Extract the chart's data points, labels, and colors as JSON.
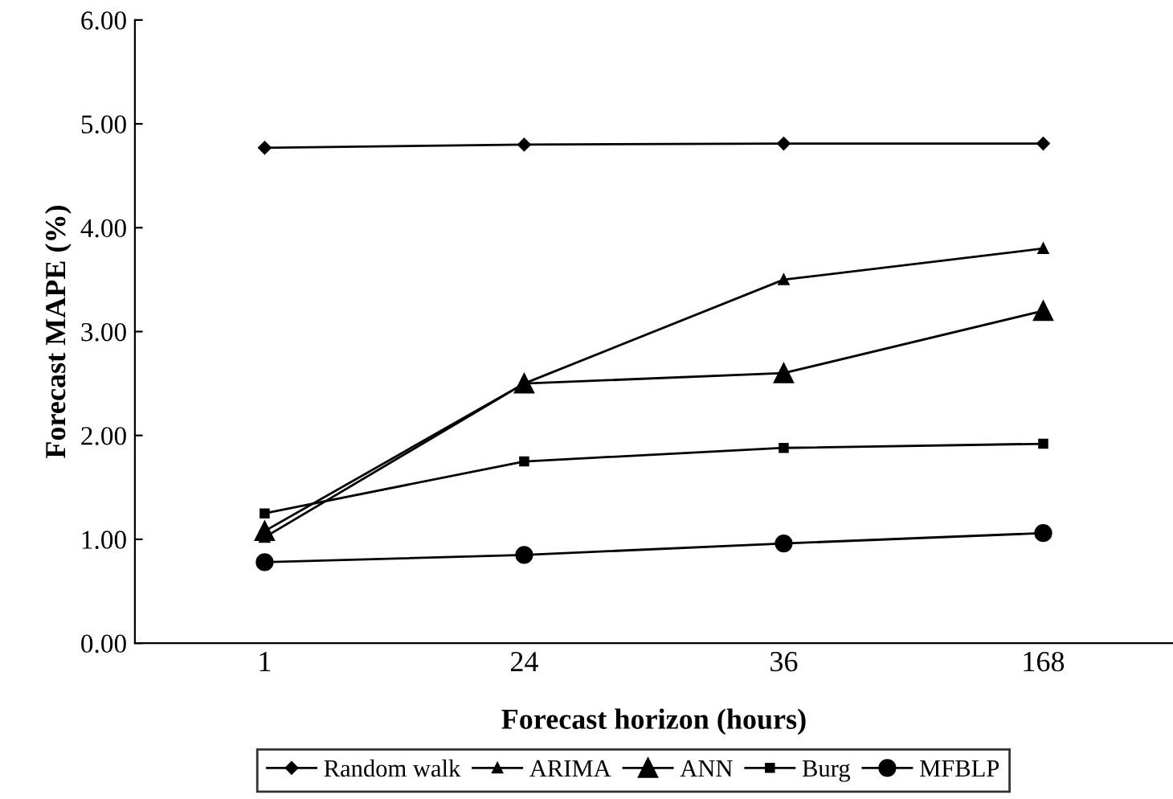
{
  "chart_data": {
    "type": "line",
    "xlabel": "Forecast horizon (hours)",
    "ylabel": "Forecast MAPE (%)",
    "categories": [
      "1",
      "24",
      "36",
      "168"
    ],
    "series": [
      {
        "name": "Random walk",
        "color": "#000000",
        "marker": "diamond",
        "values": [
          4.77,
          4.8,
          4.81,
          4.81
        ]
      },
      {
        "name": "ARIMA",
        "color": "#000000",
        "marker": "triangle",
        "values": [
          1.02,
          2.5,
          3.5,
          3.8
        ]
      },
      {
        "name": "ANN",
        "color": "#000000",
        "marker": "triangle",
        "values": [
          1.08,
          2.5,
          2.6,
          3.2
        ]
      },
      {
        "name": "Burg",
        "color": "#000000",
        "marker": "square",
        "values": [
          1.25,
          1.75,
          1.88,
          1.92
        ]
      },
      {
        "name": "MFBLP",
        "color": "#000000",
        "marker": "circle",
        "values": [
          0.78,
          0.85,
          0.96,
          1.06
        ]
      }
    ],
    "ylim": [
      0,
      6
    ],
    "yticks": [
      {
        "value": 0,
        "label": "0.00"
      },
      {
        "value": 1,
        "label": "1.00"
      },
      {
        "value": 2,
        "label": "2.00"
      },
      {
        "value": 3,
        "label": "3.00"
      },
      {
        "value": 4,
        "label": "4.00"
      },
      {
        "value": 5,
        "label": "5.00"
      },
      {
        "value": 6,
        "label": "6.00"
      }
    ],
    "grid": false,
    "legend": "bottom",
    "line_style": "solid"
  }
}
